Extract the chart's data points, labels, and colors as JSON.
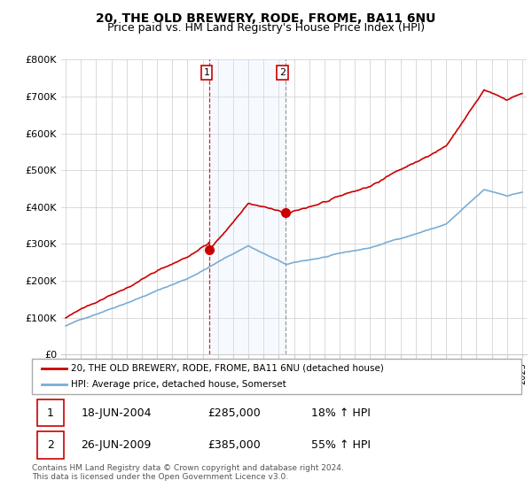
{
  "title": "20, THE OLD BREWERY, RODE, FROME, BA11 6NU",
  "subtitle": "Price paid vs. HM Land Registry's House Price Index (HPI)",
  "title_fontsize": 10,
  "subtitle_fontsize": 9,
  "ylim": [
    0,
    800000
  ],
  "yticks": [
    0,
    100000,
    200000,
    300000,
    400000,
    500000,
    600000,
    700000,
    800000
  ],
  "ytick_labels": [
    "£0",
    "£100K",
    "£200K",
    "£300K",
    "£400K",
    "£500K",
    "£600K",
    "£700K",
    "£800K"
  ],
  "background_color": "#ffffff",
  "plot_bg_color": "#ffffff",
  "grid_color": "#cccccc",
  "sale_color": "#cc0000",
  "hpi_color": "#7aadd4",
  "shade_color": "#ddeeff",
  "t1_year": 2004.46,
  "t2_year": 2009.46,
  "t1_value": 285000,
  "t2_value": 385000,
  "legend_entries": [
    "20, THE OLD BREWERY, RODE, FROME, BA11 6NU (detached house)",
    "HPI: Average price, detached house, Somerset"
  ],
  "table_rows": [
    {
      "num": "1",
      "date": "18-JUN-2004",
      "price": "£285,000",
      "change": "18% ↑ HPI"
    },
    {
      "num": "2",
      "date": "26-JUN-2009",
      "price": "£385,000",
      "change": "55% ↑ HPI"
    }
  ],
  "footnote": "Contains HM Land Registry data © Crown copyright and database right 2024.\nThis data is licensed under the Open Government Licence v3.0.",
  "x_start_year": 1995,
  "x_end_year": 2025
}
